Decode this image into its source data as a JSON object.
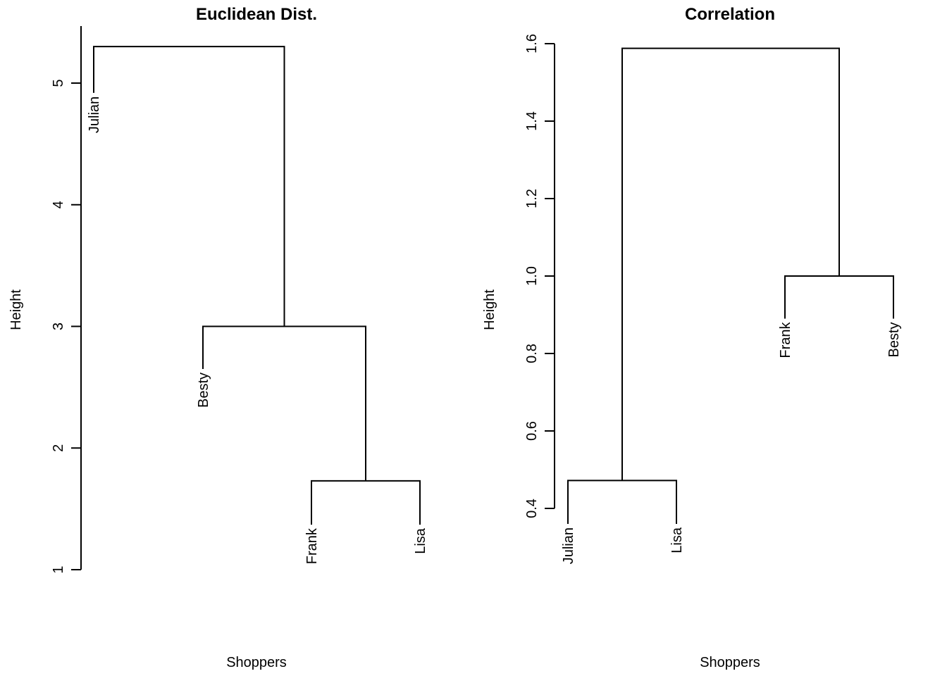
{
  "chart_data": [
    {
      "type": "dendrogram",
      "title": "Euclidean Dist.",
      "xlabel": "Shoppers",
      "ylabel": "Height",
      "ylim": [
        1,
        5.45
      ],
      "yticks": [
        1,
        2,
        3,
        4,
        5
      ],
      "leaf_order": [
        "Julian",
        "Besty",
        "Frank",
        "Lisa"
      ],
      "leaf_label_height": [
        4.92,
        2.65,
        1.37,
        1.37
      ],
      "merges": [
        {
          "left": "Frank",
          "right": "Lisa",
          "height": 1.73
        },
        {
          "left": "Besty",
          "right": "Frank+Lisa",
          "height": 3.0
        },
        {
          "left": "Julian",
          "right": "Besty+Frank+Lisa",
          "height": 5.3
        }
      ]
    },
    {
      "type": "dendrogram",
      "title": "Correlation",
      "xlabel": "Shoppers",
      "ylabel": "Height",
      "ylim": [
        0.4,
        1.6
      ],
      "yticks": [
        0.4,
        0.6,
        0.8,
        1.0,
        1.2,
        1.4,
        1.6
      ],
      "ytick_labels": [
        "0.4",
        "0.6",
        "0.8",
        "1.0",
        "1.2",
        "1.4",
        "1.6"
      ],
      "leaf_order": [
        "Julian",
        "Lisa",
        "Frank",
        "Besty"
      ],
      "leaf_label_height": [
        0.36,
        0.36,
        0.89,
        0.89
      ],
      "merges": [
        {
          "left": "Julian",
          "right": "Lisa",
          "height": 0.472
        },
        {
          "left": "Frank",
          "right": "Besty",
          "height": 1.0
        },
        {
          "left": "Julian+Lisa",
          "right": "Frank+Besty",
          "height": 1.588
        }
      ]
    }
  ]
}
